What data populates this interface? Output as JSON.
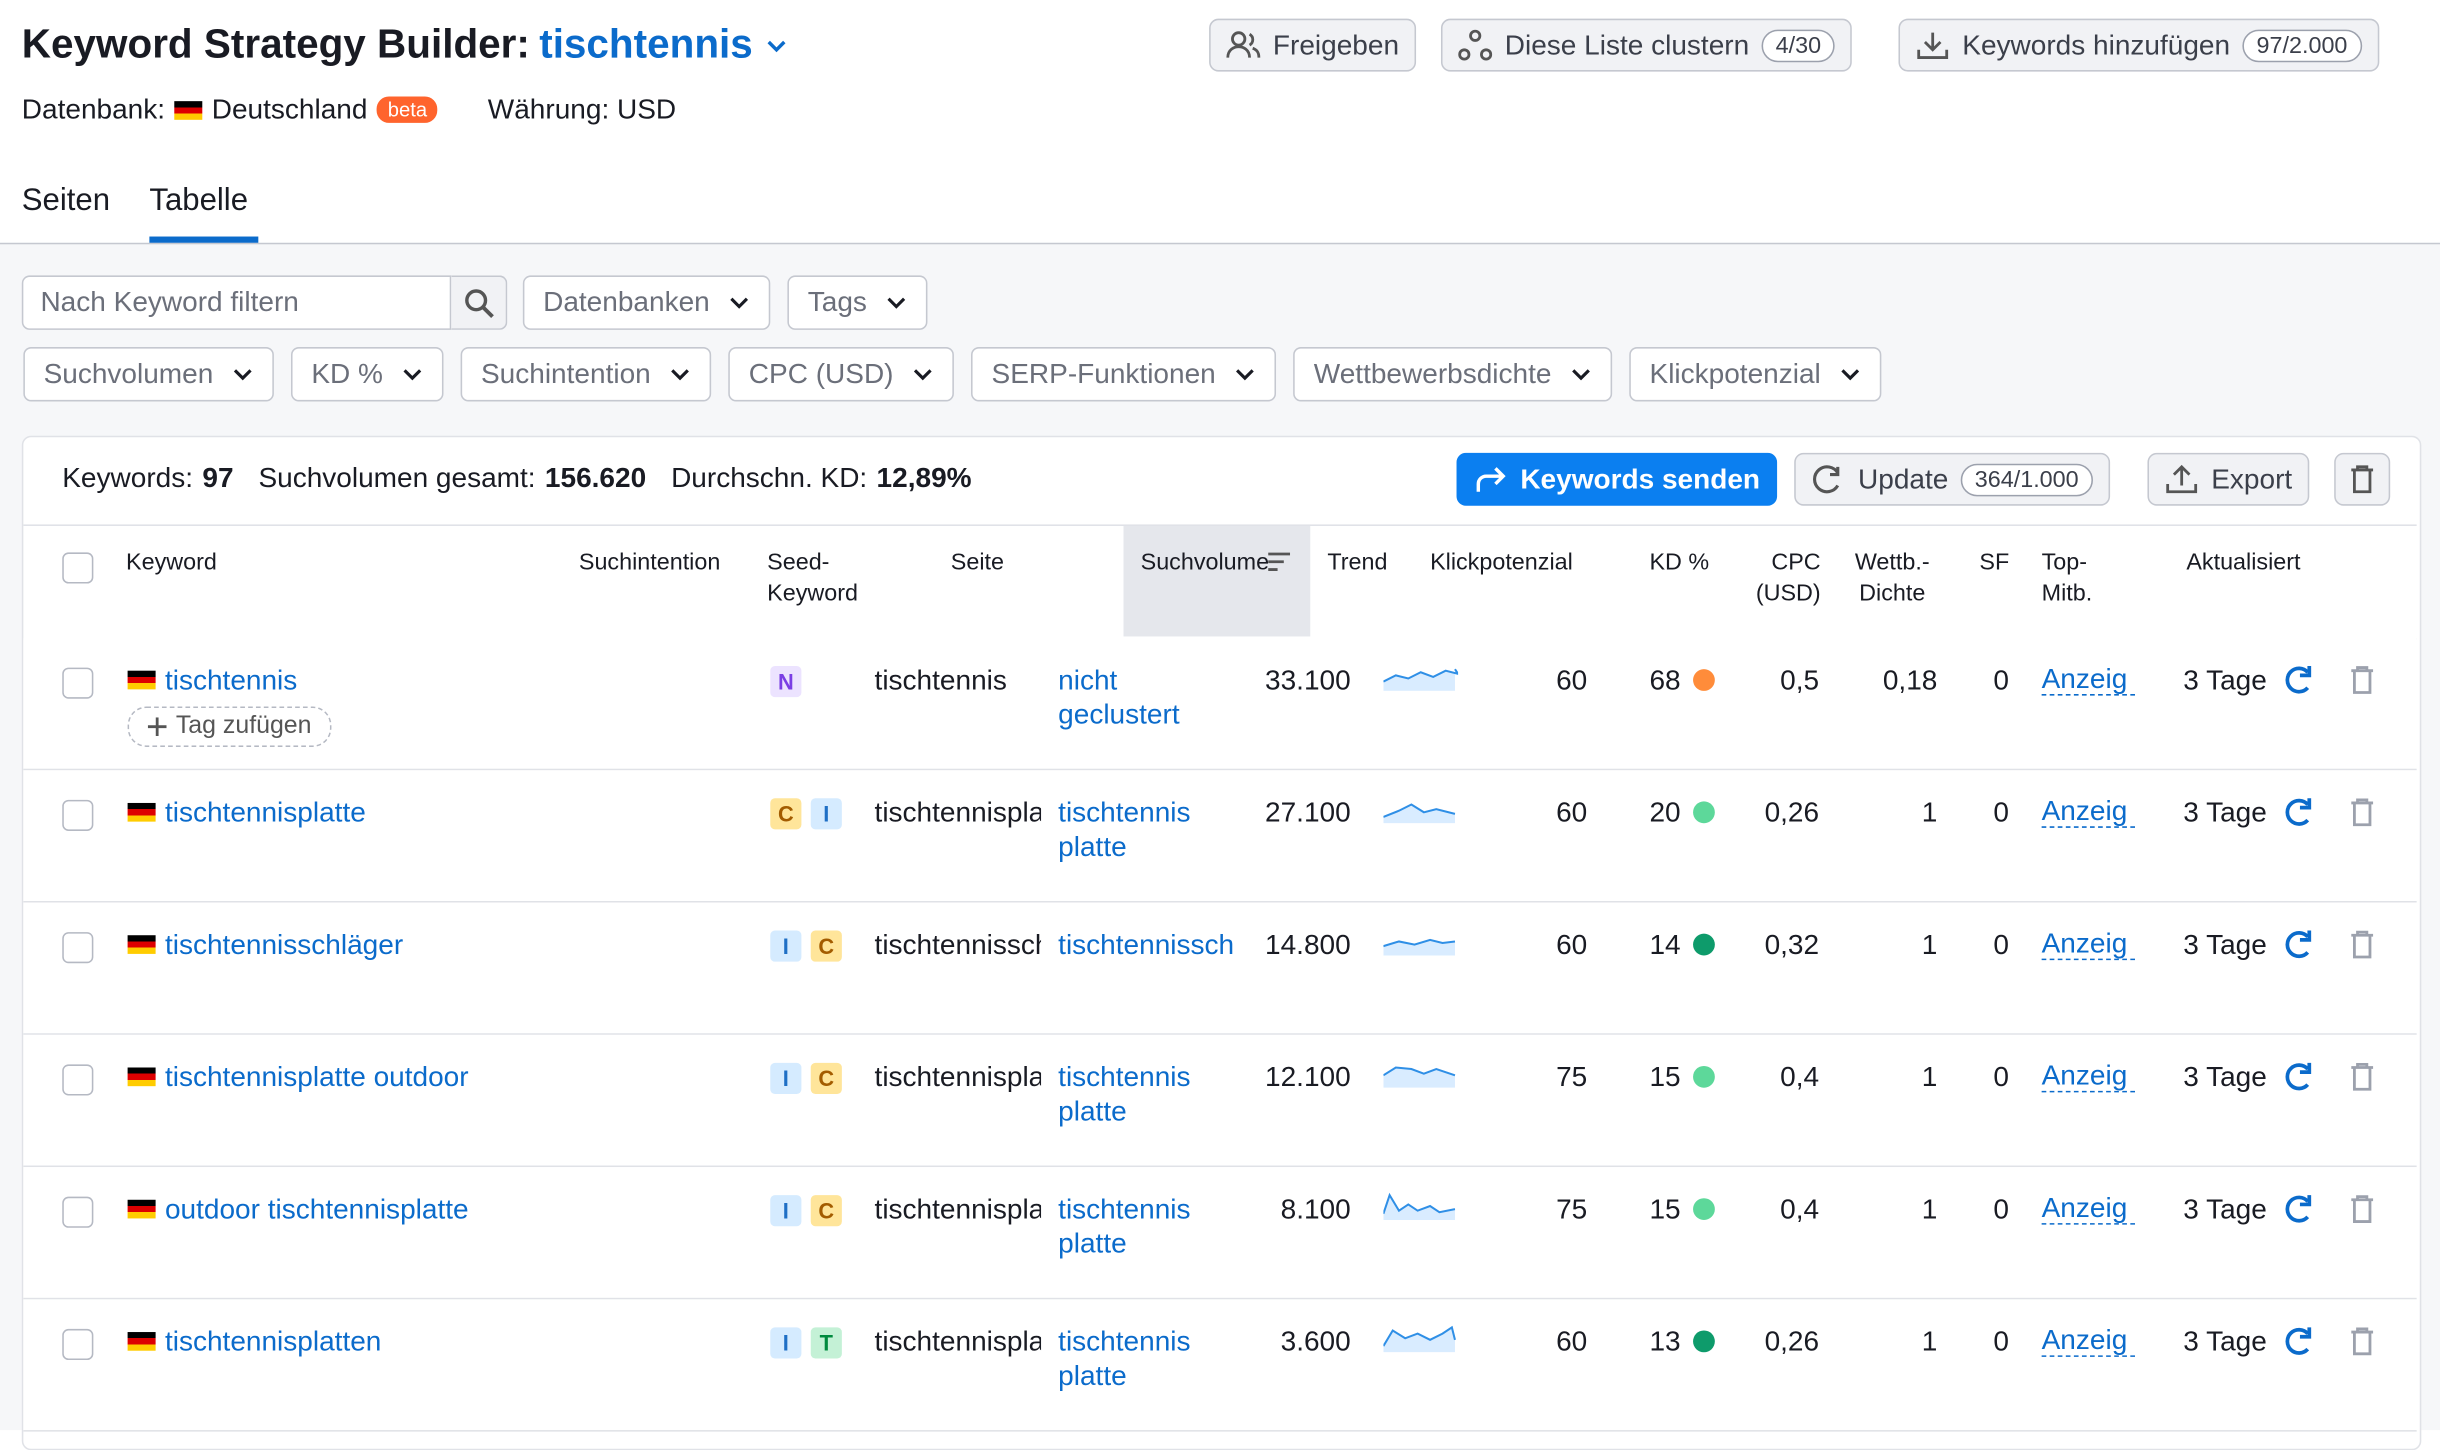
{
  "header": {
    "title": "Keyword Strategy Builder:",
    "project": "tischtennis",
    "database_label": "Datenbank:",
    "database": "Deutschland",
    "badge": "beta",
    "currency": "Währung: USD"
  },
  "buttons": [
    {
      "label": "Freigeben"
    },
    {
      "label": "Diese Liste clustern",
      "count": "4/30"
    },
    {
      "label": "Keywords hinzufügen",
      "count": "97/2.000"
    }
  ],
  "tabs": [
    "Seiten",
    "Tabelle"
  ],
  "filters": {
    "search_placeholder": "Nach Keyword filtern",
    "row1": [
      "Datenbanken",
      "Tags"
    ],
    "row2": [
      "Suchvolumen",
      "KD %",
      "Suchintention",
      "CPC (USD)",
      "SERP-Funktionen",
      "Wettbewerbsdichte",
      "Klickpotenzial"
    ]
  },
  "summary": {
    "keywords_label": "Keywords:",
    "keywords": 97,
    "volume_label": "Suchvolumen gesamt:",
    "volume": "156.620",
    "kd_label": "Durchschn. KD:",
    "kd": "12,89%"
  },
  "actions": {
    "send": "Keywords senden",
    "update": "Update",
    "update_count": "364/1.000",
    "export": "Export"
  },
  "table": {
    "columns": [
      "Keyword",
      "Suchintention",
      "Seed-Keyword",
      "Seite",
      "Suchvolumen",
      "Trend",
      "Klickpotenzial",
      "KD %",
      "CPC (USD)",
      "Wettb.-Dichte",
      "SF",
      "Top-Mitb.",
      "Aktualisiert"
    ],
    "tag_button": "Tag zufügen",
    "rows": [
      {
        "keyword": "tischtennis",
        "intents": [
          {
            "label": "N",
            "bg": "#ece3ff",
            "fg": "#7b3fe4"
          }
        ],
        "seed": "tischtennis",
        "page": "nicht geclustert",
        "volume": "33.100",
        "click": 60,
        "kd": 68,
        "kd_color": "#ff8c3a",
        "cpc": "0,5",
        "density": "0,18",
        "sf": 0,
        "top": "Anzeig",
        "updated": "3 Tage"
      },
      {
        "keyword": "tischtennisplatte",
        "intents": [
          {
            "label": "C",
            "bg": "#ffe59a",
            "fg": "#a35c00"
          },
          {
            "label": "I",
            "bg": "#d5ebff",
            "fg": "#1f6fc5"
          }
        ],
        "seed": "tischtennisplatte",
        "page": "tischtennis platte",
        "volume": "27.100",
        "click": 60,
        "kd": 20,
        "kd_color": "#5dd89a",
        "cpc": "0,26",
        "density": 1,
        "sf": 0,
        "top": "Anzeig",
        "updated": "3 Tage"
      },
      {
        "keyword": "tischtennisschläger",
        "intents": [
          {
            "label": "I",
            "bg": "#d5ebff",
            "fg": "#1f6fc5"
          },
          {
            "label": "C",
            "bg": "#ffe59a",
            "fg": "#a35c00"
          }
        ],
        "seed": "tischtennisschläger",
        "page": "tischtennisschläger",
        "volume": "14.800",
        "click": 60,
        "kd": 14,
        "kd_color": "#0e9b6b",
        "cpc": "0,32",
        "density": 1,
        "sf": 0,
        "top": "Anzeig",
        "updated": "3 Tage"
      },
      {
        "keyword": "tischtennisplatte outdoor",
        "intents": [
          {
            "label": "I",
            "bg": "#d5ebff",
            "fg": "#1f6fc5"
          },
          {
            "label": "C",
            "bg": "#ffe59a",
            "fg": "#a35c00"
          }
        ],
        "seed": "tischtennisplatte outdoor",
        "page": "tischtennis platte",
        "volume": "12.100",
        "click": 75,
        "kd": 15,
        "kd_color": "#5dd89a",
        "cpc": "0,4",
        "density": 1,
        "sf": 0,
        "top": "Anzeig",
        "updated": "3 Tage"
      },
      {
        "keyword": "outdoor tischtennisplatte",
        "intents": [
          {
            "label": "I",
            "bg": "#d5ebff",
            "fg": "#1f6fc5"
          },
          {
            "label": "C",
            "bg": "#ffe59a",
            "fg": "#a35c00"
          }
        ],
        "seed": "tischtennisplatte",
        "page": "tischtennis platte",
        "volume": "8.100",
        "click": 75,
        "kd": 15,
        "kd_color": "#5dd89a",
        "cpc": "0,4",
        "density": 1,
        "sf": 0,
        "top": "Anzeig",
        "updated": "3 Tage"
      },
      {
        "keyword": "tischtennisplatten",
        "intents": [
          {
            "label": "I",
            "bg": "#d5ebff",
            "fg": "#1f6fc5"
          },
          {
            "label": "T",
            "bg": "#c4f1d6",
            "fg": "#008a3e"
          }
        ],
        "seed": "tischtennisplatten",
        "page": "tischtennis platte",
        "volume": "3.600",
        "click": 60,
        "kd": 13,
        "kd_color": "#0e9b6b",
        "cpc": "0,26",
        "density": 1,
        "sf": 0,
        "top": "Anzeig",
        "updated": "3 Tage"
      }
    ]
  }
}
